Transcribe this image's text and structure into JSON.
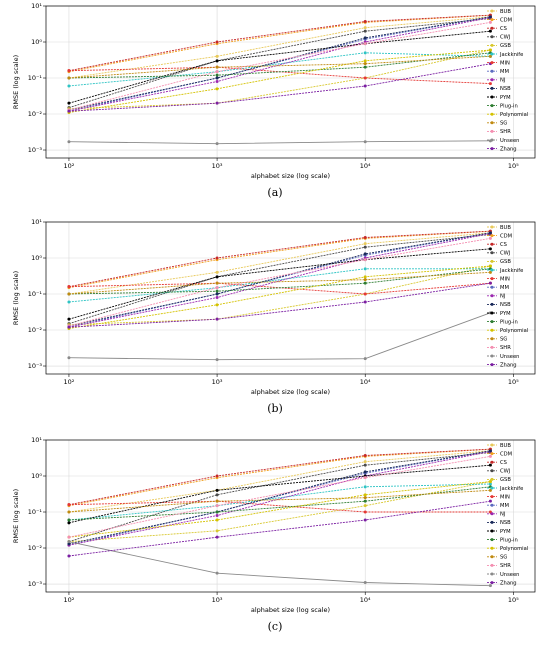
{
  "chart_data": [
    {
      "panel_label": "(a)",
      "type": "line",
      "xlabel": "alphabet size (log scale)",
      "ylabel": "RMSE (log scale)",
      "xscale": "log",
      "yscale": "log",
      "xlim": [
        70,
        140000
      ],
      "ylim": [
        0.0006,
        10
      ],
      "x_tick_labels": [
        "10²",
        "10³",
        "10⁴",
        "10⁵"
      ],
      "y_tick_labels": [
        "10⁻³",
        "10⁻²",
        "10⁻¹",
        "10⁰",
        "10¹"
      ],
      "grid": true,
      "legend_position": "right",
      "x": [
        100,
        1000,
        10000,
        70000
      ],
      "series": [
        {
          "name": "BUB",
          "color": "#e8c95a",
          "values": [
            0.1,
            0.4,
            2.5,
            5.0
          ]
        },
        {
          "name": "CDM",
          "color": "#f0a020",
          "values": [
            0.15,
            0.9,
            3.5,
            5.5
          ]
        },
        {
          "name": "CS",
          "color": "#c62828",
          "values": [
            0.16,
            1.0,
            3.7,
            5.6
          ]
        },
        {
          "name": "CWJ",
          "color": "#4a4a4a",
          "values": [
            0.015,
            0.3,
            2.0,
            4.5
          ]
        },
        {
          "name": "GSB",
          "color": "#d8c830",
          "values": [
            0.014,
            0.02,
            0.1,
            0.6
          ]
        },
        {
          "name": "Jackknife",
          "color": "#2ec4c4",
          "values": [
            0.06,
            0.15,
            0.5,
            0.4
          ]
        },
        {
          "name": "MIN",
          "color": "#e53935",
          "values": [
            0.16,
            0.2,
            0.1,
            0.07
          ]
        },
        {
          "name": "MM",
          "color": "#5c6bc0",
          "values": [
            0.012,
            0.1,
            1.2,
            5.0
          ]
        },
        {
          "name": "NJ",
          "color": "#9c27b0",
          "values": [
            0.012,
            0.08,
            1.0,
            4.8
          ]
        },
        {
          "name": "NSB",
          "color": "#1a2a5a",
          "values": [
            0.013,
            0.1,
            1.3,
            5.0
          ]
        },
        {
          "name": "PYM",
          "color": "#000000",
          "values": [
            0.02,
            0.3,
            0.9,
            2.0
          ]
        },
        {
          "name": "Plug-in",
          "color": "#2e7d32",
          "values": [
            0.1,
            0.12,
            0.2,
            0.5
          ]
        },
        {
          "name": "Polynomial",
          "color": "#d4c200",
          "values": [
            0.011,
            0.05,
            0.3,
            0.6
          ]
        },
        {
          "name": "SG",
          "color": "#c08a10",
          "values": [
            0.1,
            0.2,
            0.25,
            0.4
          ]
        },
        {
          "name": "SHR",
          "color": "#f48fb1",
          "values": [
            0.013,
            0.15,
            0.9,
            3.5
          ]
        },
        {
          "name": "Unseen",
          "color": "#8a8a8a",
          "values": [
            0.0017,
            0.0015,
            0.0017,
            0.0018
          ]
        },
        {
          "name": "Zhang",
          "color": "#7b1fa2",
          "values": [
            0.012,
            0.02,
            0.06,
            0.25
          ]
        }
      ]
    },
    {
      "panel_label": "(b)",
      "type": "line",
      "xlabel": "alphabet size (log scale)",
      "ylabel": "RMSE (log scale)",
      "xscale": "log",
      "yscale": "log",
      "xlim": [
        70,
        140000
      ],
      "ylim": [
        0.0006,
        10
      ],
      "x_tick_labels": [
        "10²",
        "10³",
        "10⁴",
        "10⁵"
      ],
      "y_tick_labels": [
        "10⁻³",
        "10⁻²",
        "10⁻¹",
        "10⁰",
        "10¹"
      ],
      "grid": true,
      "legend_position": "right",
      "x": [
        100,
        1000,
        10000,
        70000
      ],
      "series": [
        {
          "name": "BUB",
          "color": "#e8c95a",
          "values": [
            0.1,
            0.4,
            2.5,
            5.0
          ]
        },
        {
          "name": "CDM",
          "color": "#f0a020",
          "values": [
            0.15,
            0.9,
            3.5,
            5.5
          ]
        },
        {
          "name": "CS",
          "color": "#c62828",
          "values": [
            0.16,
            1.0,
            3.7,
            5.6
          ]
        },
        {
          "name": "CWJ",
          "color": "#4a4a4a",
          "values": [
            0.015,
            0.3,
            2.0,
            4.5
          ]
        },
        {
          "name": "GSB",
          "color": "#d8c830",
          "values": [
            0.014,
            0.02,
            0.1,
            0.6
          ]
        },
        {
          "name": "Jackknife",
          "color": "#2ec4c4",
          "values": [
            0.06,
            0.15,
            0.5,
            0.5
          ]
        },
        {
          "name": "MIN",
          "color": "#e53935",
          "values": [
            0.16,
            0.2,
            0.1,
            0.2
          ]
        },
        {
          "name": "MM",
          "color": "#5c6bc0",
          "values": [
            0.012,
            0.1,
            1.2,
            5.0
          ]
        },
        {
          "name": "NJ",
          "color": "#9c27b0",
          "values": [
            0.012,
            0.08,
            1.0,
            4.8
          ]
        },
        {
          "name": "NSB",
          "color": "#1a2a5a",
          "values": [
            0.013,
            0.1,
            1.3,
            5.0
          ]
        },
        {
          "name": "PYM",
          "color": "#000000",
          "values": [
            0.02,
            0.3,
            0.9,
            1.8
          ]
        },
        {
          "name": "Plug-in",
          "color": "#2e7d32",
          "values": [
            0.1,
            0.12,
            0.2,
            0.5
          ]
        },
        {
          "name": "Polynomial",
          "color": "#d4c200",
          "values": [
            0.011,
            0.05,
            0.3,
            0.6
          ]
        },
        {
          "name": "SG",
          "color": "#c08a10",
          "values": [
            0.1,
            0.2,
            0.25,
            0.4
          ]
        },
        {
          "name": "SHR",
          "color": "#f48fb1",
          "values": [
            0.013,
            0.15,
            0.9,
            3.5
          ]
        },
        {
          "name": "Unseen",
          "color": "#8a8a8a",
          "values": [
            0.0017,
            0.0015,
            0.0016,
            0.03
          ]
        },
        {
          "name": "Zhang",
          "color": "#7b1fa2",
          "values": [
            0.012,
            0.02,
            0.06,
            0.2
          ]
        }
      ]
    },
    {
      "panel_label": "(c)",
      "type": "line",
      "xlabel": "alphabet size (log scale)",
      "ylabel": "RMSE (log scale)",
      "xscale": "log",
      "yscale": "log",
      "xlim": [
        70,
        140000
      ],
      "ylim": [
        0.0006,
        10
      ],
      "x_tick_labels": [
        "10²",
        "10³",
        "10⁴",
        "10⁵"
      ],
      "y_tick_labels": [
        "10⁻³",
        "10⁻²",
        "10⁻¹",
        "10⁰",
        "10¹"
      ],
      "grid": true,
      "legend_position": "right",
      "x": [
        100,
        1000,
        10000,
        70000
      ],
      "series": [
        {
          "name": "BUB",
          "color": "#e8c95a",
          "values": [
            0.1,
            0.4,
            2.5,
            5.0
          ]
        },
        {
          "name": "CDM",
          "color": "#f0a020",
          "values": [
            0.15,
            0.9,
            3.5,
            5.5
          ]
        },
        {
          "name": "CS",
          "color": "#c62828",
          "values": [
            0.16,
            1.0,
            3.7,
            5.6
          ]
        },
        {
          "name": "CWJ",
          "color": "#4a4a4a",
          "values": [
            0.015,
            0.3,
            2.0,
            4.5
          ]
        },
        {
          "name": "GSB",
          "color": "#d8c830",
          "values": [
            0.015,
            0.03,
            0.15,
            0.7
          ]
        },
        {
          "name": "Jackknife",
          "color": "#2ec4c4",
          "values": [
            0.06,
            0.15,
            0.5,
            0.6
          ]
        },
        {
          "name": "MIN",
          "color": "#e53935",
          "values": [
            0.16,
            0.2,
            0.1,
            0.1
          ]
        },
        {
          "name": "MM",
          "color": "#5c6bc0",
          "values": [
            0.012,
            0.1,
            1.2,
            5.0
          ]
        },
        {
          "name": "NJ",
          "color": "#9c27b0",
          "values": [
            0.012,
            0.08,
            1.0,
            4.8
          ]
        },
        {
          "name": "NSB",
          "color": "#1a2a5a",
          "values": [
            0.013,
            0.1,
            1.3,
            5.0
          ]
        },
        {
          "name": "PYM",
          "color": "#000000",
          "values": [
            0.05,
            0.4,
            1.0,
            2.0
          ]
        },
        {
          "name": "Plug-in",
          "color": "#2e7d32",
          "values": [
            0.06,
            0.1,
            0.2,
            0.5
          ]
        },
        {
          "name": "Polynomial",
          "color": "#d4c200",
          "values": [
            0.02,
            0.06,
            0.3,
            0.7
          ]
        },
        {
          "name": "SG",
          "color": "#c08a10",
          "values": [
            0.1,
            0.2,
            0.25,
            0.4
          ]
        },
        {
          "name": "SHR",
          "color": "#f48fb1",
          "values": [
            0.02,
            0.15,
            0.9,
            3.5
          ]
        },
        {
          "name": "Unseen",
          "color": "#8a8a8a",
          "values": [
            0.015,
            0.002,
            0.0011,
            0.0009
          ]
        },
        {
          "name": "Zhang",
          "color": "#7b1fa2",
          "values": [
            0.006,
            0.02,
            0.06,
            0.2
          ]
        }
      ]
    }
  ]
}
